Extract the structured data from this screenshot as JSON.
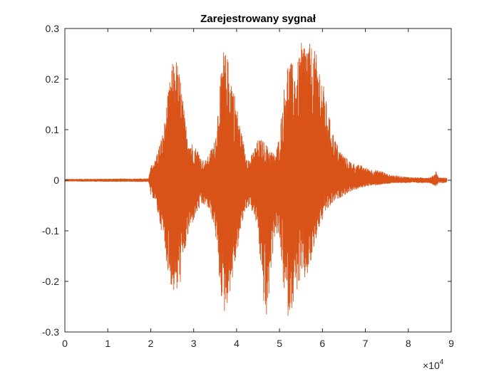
{
  "chart_data": {
    "type": "line",
    "title": "Zarejestrowany sygnał",
    "xlabel": "",
    "ylabel": "",
    "xlim": [
      0,
      90000
    ],
    "ylim": [
      -0.3,
      0.3
    ],
    "x_ticks": [
      0,
      10000,
      20000,
      30000,
      40000,
      50000,
      60000,
      70000,
      80000,
      90000
    ],
    "x_tick_labels": [
      "0",
      "1",
      "2",
      "3",
      "4",
      "5",
      "6",
      "7",
      "8",
      "9"
    ],
    "x_exponent_label": "×10",
    "x_exponent_power": "4",
    "y_ticks": [
      -0.3,
      -0.2,
      -0.1,
      0,
      0.1,
      0.2,
      0.3
    ],
    "y_tick_labels": [
      "-0.3",
      "-0.2",
      "-0.1",
      "0",
      "0.1",
      "0.2",
      "0.3"
    ],
    "grid": false,
    "line_color": "#D95319",
    "series": [
      {
        "envelope": {
          "x": [
            0,
            19500,
            20000,
            21000,
            22000,
            23000,
            24000,
            25000,
            26000,
            27000,
            28000,
            29000,
            30000,
            31000,
            32000,
            33000,
            34000,
            35000,
            36000,
            37000,
            38000,
            39000,
            40000,
            41000,
            42000,
            43000,
            44000,
            45000,
            46000,
            47000,
            48000,
            49000,
            50000,
            51000,
            52000,
            53000,
            54000,
            55000,
            56000,
            57000,
            58000,
            59000,
            60000,
            61000,
            62000,
            63000,
            64000,
            65000,
            66000,
            67000,
            68000,
            69000,
            70000,
            72000,
            74000,
            75000,
            76000,
            78000,
            80000,
            82000,
            84000,
            85000,
            86000,
            86500,
            87000,
            88000,
            89000
          ],
          "upper": [
            0.002,
            0.003,
            0.03,
            0.04,
            0.07,
            0.1,
            0.17,
            0.23,
            0.24,
            0.2,
            0.12,
            0.08,
            0.07,
            0.06,
            0.04,
            0.04,
            0.06,
            0.08,
            0.18,
            0.26,
            0.24,
            0.2,
            0.15,
            0.1,
            0.06,
            0.04,
            0.06,
            0.08,
            0.08,
            0.07,
            0.06,
            0.05,
            0.09,
            0.18,
            0.24,
            0.23,
            0.22,
            0.27,
            0.28,
            0.27,
            0.26,
            0.24,
            0.2,
            0.15,
            0.11,
            0.08,
            0.06,
            0.05,
            0.04,
            0.035,
            0.03,
            0.03,
            0.025,
            0.02,
            0.018,
            0.012,
            0.01,
            0.008,
            0.006,
            0.005,
            0.005,
            0.005,
            0.01,
            0.02,
            0.005,
            0.005,
            0.004
          ],
          "lower": [
            -0.002,
            -0.003,
            -0.03,
            -0.04,
            -0.08,
            -0.12,
            -0.18,
            -0.22,
            -0.23,
            -0.2,
            -0.14,
            -0.1,
            -0.08,
            -0.06,
            -0.05,
            -0.05,
            -0.07,
            -0.1,
            -0.2,
            -0.27,
            -0.24,
            -0.2,
            -0.15,
            -0.1,
            -0.06,
            -0.05,
            -0.07,
            -0.1,
            -0.22,
            -0.29,
            -0.18,
            -0.1,
            -0.12,
            -0.22,
            -0.27,
            -0.25,
            -0.22,
            -0.2,
            -0.2,
            -0.18,
            -0.14,
            -0.1,
            -0.08,
            -0.06,
            -0.05,
            -0.04,
            -0.035,
            -0.03,
            -0.025,
            -0.02,
            -0.018,
            -0.015,
            -0.012,
            -0.01,
            -0.008,
            -0.007,
            -0.006,
            -0.005,
            -0.005,
            -0.005,
            -0.005,
            -0.005,
            -0.01,
            -0.012,
            -0.005,
            -0.005,
            -0.004
          ]
        }
      }
    ]
  }
}
